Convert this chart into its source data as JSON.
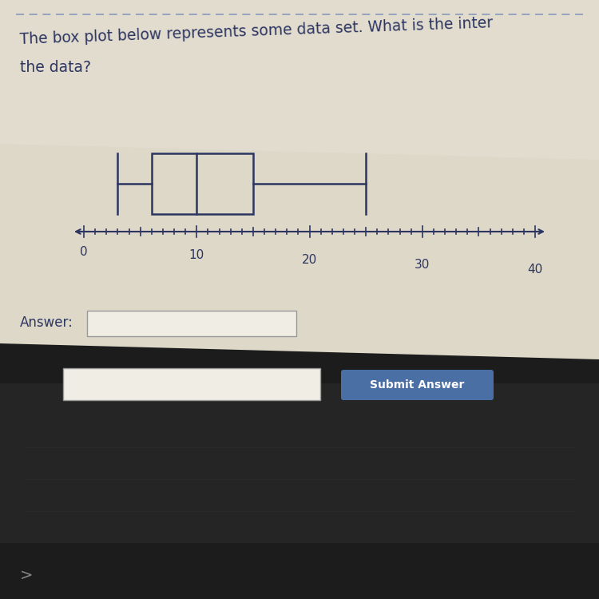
{
  "whisker_min": 3,
  "q1": 6,
  "median": 10,
  "q3": 15,
  "whisker_max": 25,
  "axis_min": 0,
  "axis_max": 40,
  "x_ticks": [
    0,
    10,
    20,
    30,
    40
  ],
  "answer_label": "Answer:",
  "submit_label": "Submit Answer",
  "screen_bg": "#ddd8c8",
  "box_color": "#2d3561",
  "text_color": "#2d3561",
  "button_color": "#4a6fa5",
  "button_text_color": "#ffffff",
  "kbd_color": "#1a1a1a",
  "kbd2_color": "#2a2a2a",
  "photo_bg": "#5a5a5a"
}
